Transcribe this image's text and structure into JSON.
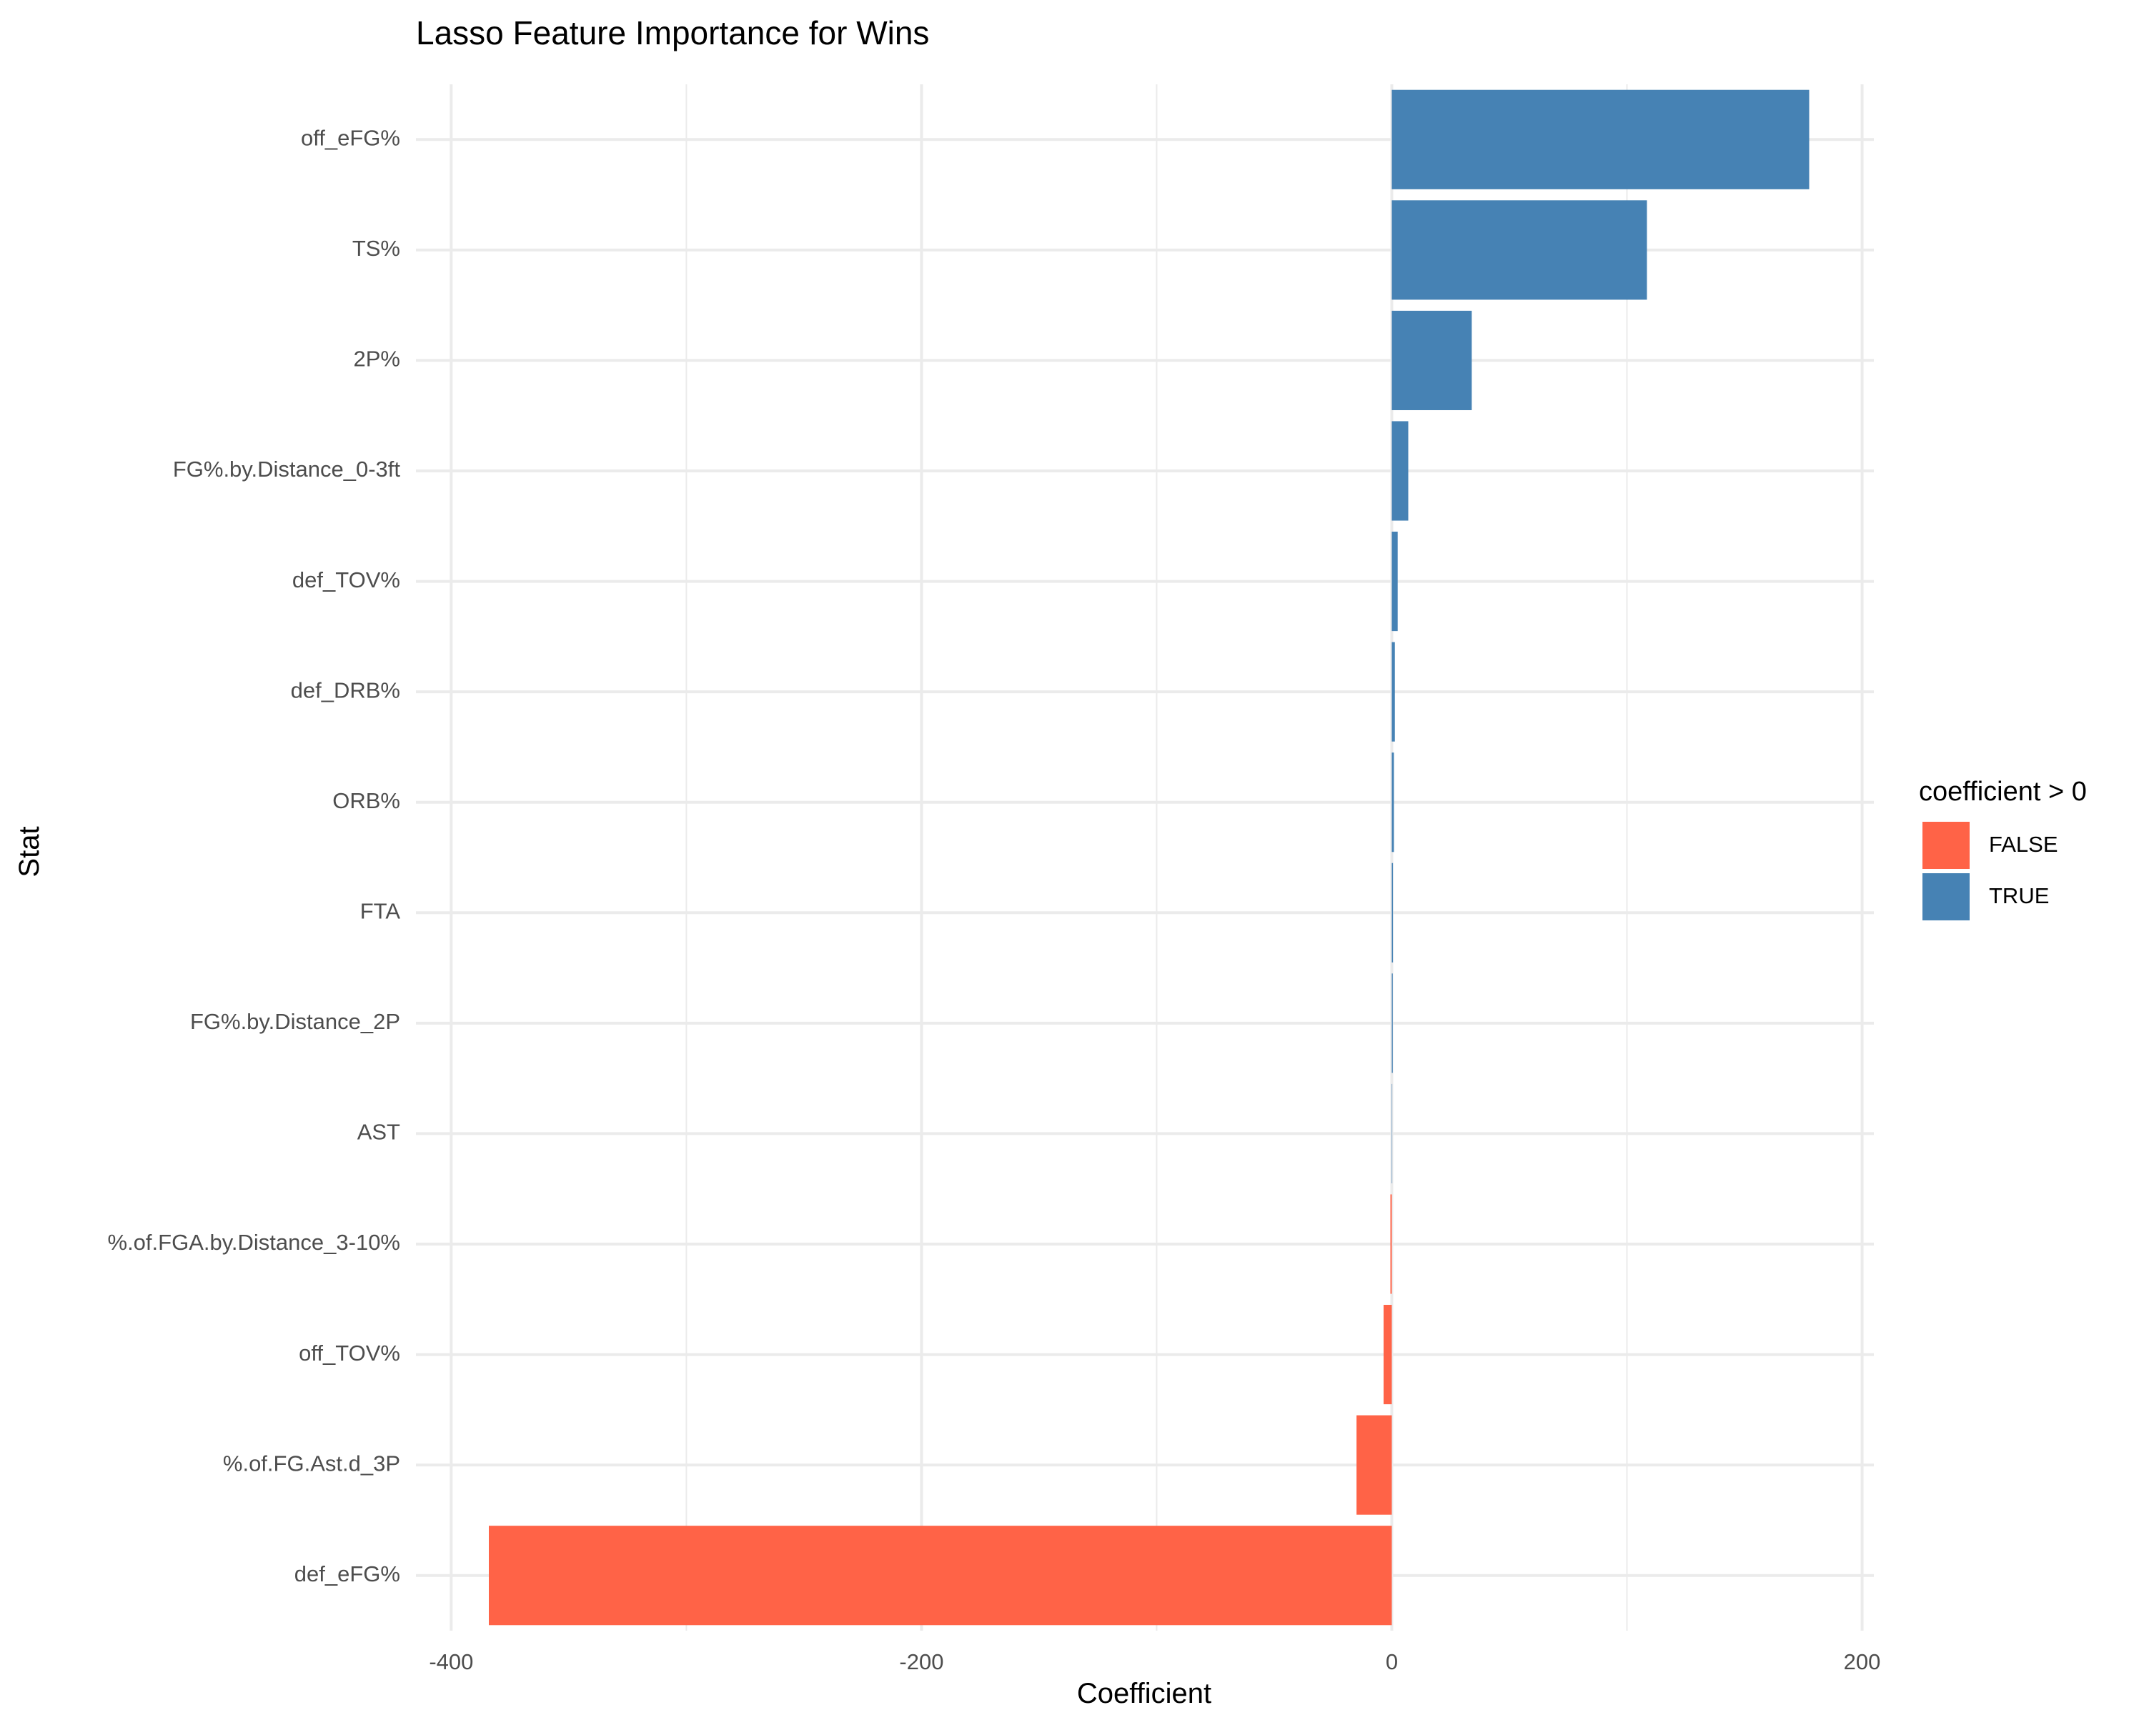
{
  "chart_data": {
    "type": "bar",
    "orientation": "horizontal",
    "title": "Lasso Feature Importance for Wins",
    "xlabel": "Coefficient",
    "ylabel": "Stat",
    "xlim": [
      -415,
      205
    ],
    "x_ticks": [
      -400,
      -200,
      0,
      200
    ],
    "grid": true,
    "categories": [
      "off_eFG%",
      "TS%",
      "2P%",
      "FG%.by.Distance_0-3ft",
      "def_TOV%",
      "def_DRB%",
      "ORB%",
      "FTA",
      "FG%.by.Distance_2P",
      "AST",
      "%.of.FGA.by.Distance_3-10%",
      "off_TOV%",
      "%.of.FG.Ast.d_3P",
      "def_eFG%"
    ],
    "values": [
      177.5,
      108.5,
      34,
      7,
      2.5,
      1.3,
      0.9,
      0.5,
      0.4,
      0.05,
      -0.6,
      -3.5,
      -15,
      -384
    ],
    "legend": {
      "title": "coefficient > 0",
      "position": "right",
      "items": [
        {
          "label": "FALSE",
          "color": "#FF6347"
        },
        {
          "label": "TRUE",
          "color": "#4682B4"
        }
      ]
    },
    "colors": {
      "negative": "#FF6347",
      "positive": "#4682B4",
      "grid": "#EBEBEB"
    }
  }
}
